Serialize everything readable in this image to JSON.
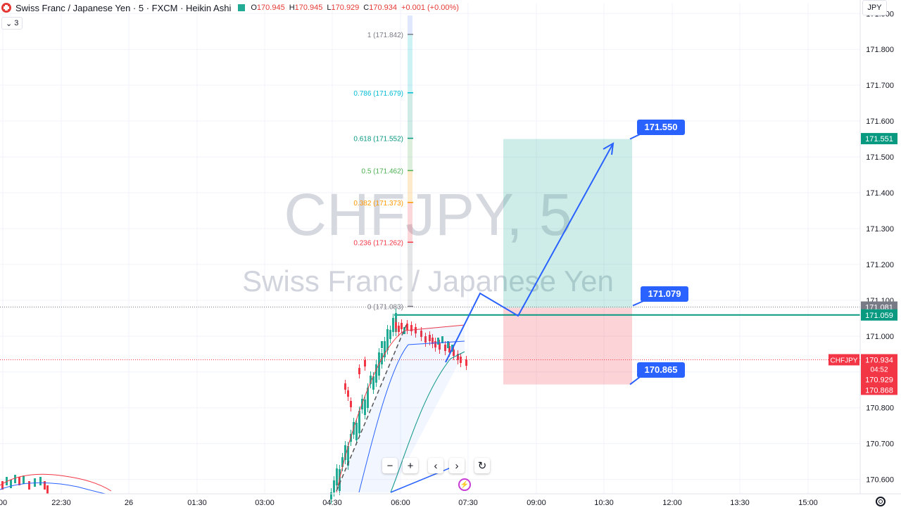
{
  "header": {
    "title": "Swiss Franc / Japanese Yen · 5 · FXCM · Heikin Ashi",
    "ohlc": [
      {
        "label": "O",
        "value": "170.945"
      },
      {
        "label": "H",
        "value": "170.945"
      },
      {
        "label": "L",
        "value": "170.929"
      },
      {
        "label": "C",
        "value": "170.934"
      }
    ],
    "change": "+0.001 (+0.00%)",
    "collapse_count": "3",
    "currency": "JPY"
  },
  "watermark": {
    "symbol": "CHFJPY, 5",
    "name": "Swiss Franc / Japanese Yen"
  },
  "colors": {
    "up": "#22ab94",
    "down": "#f23645",
    "drawing": "#2962ff",
    "fib_zero": "#787b86"
  },
  "price_axis": {
    "min": 170.56,
    "max": 171.93,
    "ticks": [
      "171.900",
      "171.800",
      "171.700",
      "171.600",
      "171.500",
      "171.400",
      "171.300",
      "171.200",
      "171.100",
      "171.000",
      "170.900",
      "170.800",
      "170.700",
      "170.600"
    ]
  },
  "price_labels": [
    {
      "text": "171.551",
      "price": 171.551,
      "color": "#089981"
    },
    {
      "text": "171.081",
      "price": 171.081,
      "color": "#787b86"
    },
    {
      "text": "171.059",
      "price": 171.059,
      "color": "#089981"
    }
  ],
  "last_price": {
    "symbol": "CHFJPY",
    "price": "170.934",
    "countdown": "04:52",
    "bid": "170.929",
    "ask": "170.868",
    "value": 170.934,
    "color": "#f23645"
  },
  "time_axis": [
    {
      "label": "00",
      "time": "00:00"
    },
    {
      "label": "22:30",
      "time": "22:30"
    },
    {
      "label": "26",
      "time": "26"
    },
    {
      "label": "01:30",
      "time": "01:30"
    },
    {
      "label": "03:00",
      "time": "03:00"
    },
    {
      "label": "04:30",
      "time": "04:30"
    },
    {
      "label": "06:00",
      "time": "06:00"
    },
    {
      "label": "07:30",
      "time": "07:30"
    },
    {
      "label": "09:00",
      "time": "09:00"
    },
    {
      "label": "10:30",
      "time": "10:30"
    },
    {
      "label": "12:00",
      "time": "12:00"
    },
    {
      "label": "13:30",
      "time": "13:30"
    },
    {
      "label": "15:00",
      "time": "15:00"
    }
  ],
  "fib_levels": [
    {
      "label": "1 (171.842)",
      "price": 171.842,
      "color": "#787b86"
    },
    {
      "label": "0.786 (171.679)",
      "price": 171.679,
      "color": "#00bcd4"
    },
    {
      "label": "0.618 (171.552)",
      "price": 171.552,
      "color": "#089981"
    },
    {
      "label": "0.5 (171.462)",
      "price": 171.462,
      "color": "#4caf50"
    },
    {
      "label": "0.382 (171.373)",
      "price": 171.373,
      "color": "#ff9800"
    },
    {
      "label": "0.236 (171.262)",
      "price": 171.262,
      "color": "#f23645"
    },
    {
      "label": "0 (171.083)",
      "price": 171.083,
      "color": "#787b86"
    }
  ],
  "position": {
    "target": "171.550",
    "entry": "171.079",
    "stop": "170.865",
    "target_value": 171.55,
    "entry_value": 171.079,
    "stop_value": 170.865
  },
  "horizontal_line": {
    "price": 171.059,
    "color": "#089981"
  },
  "controls": {
    "zoom_out": "−",
    "zoom_in": "+",
    "scroll_left": "‹",
    "scroll_right": "›",
    "reset": "↻"
  }
}
